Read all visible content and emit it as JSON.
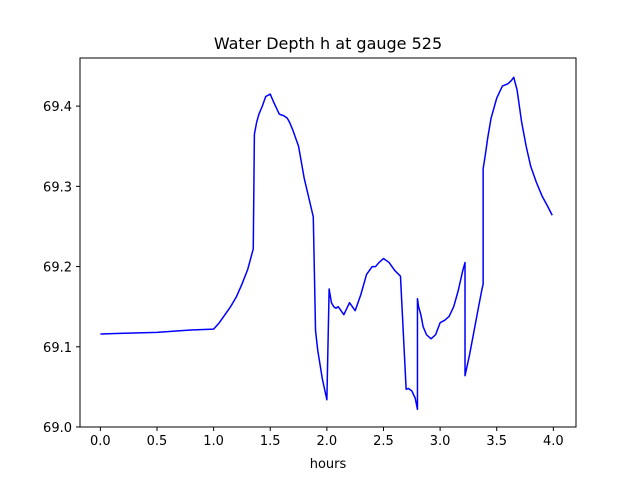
{
  "chart_data": {
    "type": "line",
    "title": "Water Depth h at gauge 525",
    "xlabel": "hours",
    "ylabel": "",
    "xlim": [
      -0.18,
      4.2
    ],
    "ylim": [
      69.0,
      69.46
    ],
    "xticks": [
      0.0,
      0.5,
      1.0,
      1.5,
      2.0,
      2.5,
      3.0,
      3.5,
      4.0
    ],
    "xtick_labels": [
      "0.0",
      "0.5",
      "1.0",
      "1.5",
      "2.0",
      "2.5",
      "3.0",
      "3.5",
      "4.0"
    ],
    "yticks": [
      69.0,
      69.1,
      69.2,
      69.3,
      69.4
    ],
    "ytick_labels": [
      "69.0",
      "69.1",
      "69.2",
      "69.3",
      "69.4"
    ],
    "grid": false,
    "series": [
      {
        "color": "#0000ff",
        "x": [
          0.0,
          0.25,
          0.5,
          0.7,
          0.8,
          1.0,
          1.05,
          1.1,
          1.15,
          1.2,
          1.25,
          1.3,
          1.35,
          1.36,
          1.36,
          1.38,
          1.4,
          1.43,
          1.46,
          1.5,
          1.53,
          1.55,
          1.58,
          1.62,
          1.65,
          1.67,
          1.7,
          1.75,
          1.8,
          1.85,
          1.88,
          1.9,
          1.9,
          1.92,
          1.96,
          2.0,
          2.02,
          2.02,
          2.04,
          2.06,
          2.08,
          2.1,
          2.15,
          2.2,
          2.25,
          2.3,
          2.35,
          2.4,
          2.43,
          2.46,
          2.5,
          2.55,
          2.6,
          2.65,
          2.7,
          2.7,
          2.72,
          2.75,
          2.78,
          2.8,
          2.8,
          2.81,
          2.83,
          2.85,
          2.88,
          2.92,
          2.96,
          3.0,
          3.04,
          3.08,
          3.12,
          3.16,
          3.2,
          3.22,
          3.22,
          3.26,
          3.3,
          3.34,
          3.37,
          3.38,
          3.38,
          3.4,
          3.42,
          3.45,
          3.5,
          3.55,
          3.6,
          3.63,
          3.65,
          3.68,
          3.72,
          3.76,
          3.8,
          3.85,
          3.9,
          3.95,
          3.99
        ],
        "y": [
          69.116,
          69.117,
          69.118,
          69.12,
          69.121,
          69.122,
          69.13,
          69.14,
          69.15,
          69.162,
          69.178,
          69.196,
          69.222,
          69.365,
          69.365,
          69.38,
          69.39,
          69.4,
          69.412,
          69.415,
          69.405,
          69.399,
          69.39,
          69.388,
          69.385,
          69.38,
          69.37,
          69.35,
          69.31,
          69.28,
          69.262,
          69.12,
          69.12,
          69.095,
          69.06,
          69.034,
          69.172,
          69.172,
          69.155,
          69.15,
          69.148,
          69.15,
          69.14,
          69.155,
          69.145,
          69.165,
          69.19,
          69.2,
          69.2,
          69.205,
          69.21,
          69.205,
          69.195,
          69.188,
          69.047,
          69.047,
          69.048,
          69.045,
          69.036,
          69.022,
          69.16,
          69.15,
          69.14,
          69.125,
          69.115,
          69.11,
          69.115,
          69.13,
          69.133,
          69.138,
          69.15,
          69.17,
          69.195,
          69.205,
          69.064,
          69.09,
          69.12,
          69.15,
          69.172,
          69.178,
          69.322,
          69.34,
          69.36,
          69.385,
          69.41,
          69.425,
          69.428,
          69.432,
          69.436,
          69.42,
          69.38,
          69.35,
          69.325,
          69.305,
          69.288,
          69.275,
          69.264
        ]
      }
    ]
  }
}
